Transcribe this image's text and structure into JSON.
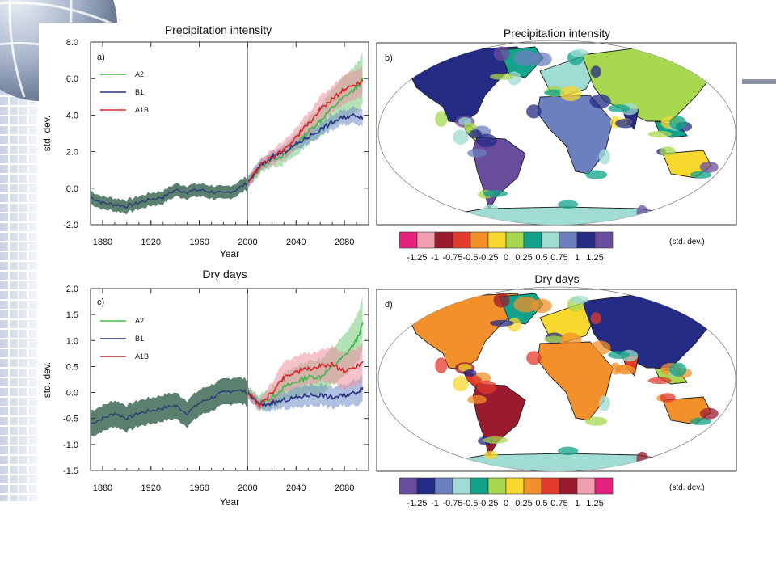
{
  "slide": {
    "background_colors": {
      "globe": "#8a9bb5",
      "grid": "#c9d3e3",
      "rule": "#8d95a4"
    }
  },
  "chart_data": [
    {
      "type": "line",
      "panel": "a)",
      "title": "Precipitation intensity",
      "xlabel": "Year",
      "ylabel": "std. dev.",
      "xlim": [
        1870,
        2100
      ],
      "ylim": [
        -2.0,
        8.0
      ],
      "xticks": [
        "1880",
        "1920",
        "1960",
        "2000",
        "2040",
        "2080"
      ],
      "yticks": [
        "-2.0",
        "0.0",
        "2.0",
        "4.0",
        "6.0",
        "8.0"
      ],
      "vline_x": 2000,
      "legend": "top-left",
      "grey_band_color": "#3f6a57",
      "series": [
        {
          "name": "A2",
          "color": "#3db84a",
          "band_color": "#79c97a",
          "x": [
            2000,
            2010,
            2020,
            2030,
            2040,
            2050,
            2060,
            2070,
            2080,
            2090,
            2095
          ],
          "values": [
            0.3,
            1.1,
            1.6,
            1.8,
            2.4,
            3.1,
            3.7,
            4.4,
            5.0,
            5.5,
            5.9
          ],
          "spread": [
            0.3,
            0.3,
            0.4,
            0.5,
            0.6,
            0.7,
            0.8,
            1.0,
            1.1,
            1.3,
            1.4
          ]
        },
        {
          "name": "B1",
          "color": "#28347f",
          "band_color": "#6f8cc7",
          "x": [
            2000,
            2010,
            2020,
            2030,
            2040,
            2050,
            2060,
            2070,
            2080,
            2090,
            2095
          ],
          "values": [
            0.3,
            1.2,
            1.7,
            2.0,
            2.4,
            2.8,
            3.2,
            3.6,
            3.9,
            4.0,
            3.9
          ],
          "spread": [
            0.3,
            0.3,
            0.3,
            0.3,
            0.3,
            0.35,
            0.35,
            0.4,
            0.4,
            0.45,
            0.45
          ]
        },
        {
          "name": "A1B",
          "color": "#d7262b",
          "band_color": "#ec8fa1",
          "x": [
            2000,
            2010,
            2020,
            2030,
            2040,
            2050,
            2060,
            2070,
            2080,
            2090,
            2095
          ],
          "values": [
            0.3,
            1.2,
            1.7,
            2.1,
            2.8,
            3.5,
            4.3,
            4.9,
            5.4,
            5.7,
            5.9
          ],
          "spread": [
            0.3,
            0.3,
            0.4,
            0.5,
            0.5,
            0.6,
            0.7,
            0.7,
            0.8,
            0.8,
            0.8
          ]
        }
      ],
      "historical": {
        "x": [
          1870,
          1880,
          1890,
          1900,
          1910,
          1920,
          1930,
          1940,
          1950,
          1960,
          1970,
          1980,
          1990,
          2000
        ],
        "values": [
          -0.5,
          -0.8,
          -0.9,
          -1.0,
          -0.8,
          -0.6,
          -0.5,
          -0.1,
          -0.2,
          -0.1,
          -0.2,
          -0.3,
          -0.1,
          0.3
        ],
        "spread": 0.35
      }
    },
    {
      "type": "heatmap",
      "panel": "b)",
      "title": "Precipitation intensity",
      "colorbar_unit": "(std. dev.)",
      "colorbar_labels": [
        "-1.25",
        "-1",
        "-0.75",
        "-0.5",
        "-0.25",
        "0",
        "0.25",
        "0.5",
        "0.75",
        "1",
        "1.25"
      ],
      "colorbar_colors": [
        "#e3217d",
        "#f29db0",
        "#9b1b2e",
        "#e23a2c",
        "#f2902b",
        "#f7d82c",
        "#a7d84f",
        "#12a38a",
        "#9fdcd3",
        "#6c7fbe",
        "#242b85",
        "#6a4c9e"
      ]
    },
    {
      "type": "line",
      "panel": "c)",
      "title": "Dry days",
      "xlabel": "Year",
      "ylabel": "std. dev.",
      "xlim": [
        1870,
        2100
      ],
      "ylim": [
        -1.5,
        2.0
      ],
      "xticks": [
        "1880",
        "1920",
        "1960",
        "2000",
        "2040",
        "2080"
      ],
      "yticks": [
        "-1.5",
        "-1.0",
        "-0.5",
        "0.0",
        "0.5",
        "1.0",
        "1.5",
        "2.0"
      ],
      "vline_x": 2000,
      "legend": "top-left",
      "grey_band_color": "#3f6a57",
      "series": [
        {
          "name": "A2",
          "color": "#3db84a",
          "band_color": "#79c97a",
          "x": [
            2000,
            2010,
            2020,
            2030,
            2040,
            2050,
            2060,
            2070,
            2080,
            2090,
            2095
          ],
          "values": [
            0.0,
            -0.2,
            -0.1,
            0.1,
            0.2,
            0.3,
            0.3,
            0.5,
            0.7,
            1.0,
            1.3
          ],
          "spread": [
            0.1,
            0.15,
            0.2,
            0.25,
            0.3,
            0.3,
            0.35,
            0.35,
            0.4,
            0.45,
            0.5
          ]
        },
        {
          "name": "B1",
          "color": "#28347f",
          "band_color": "#6f8cc7",
          "x": [
            2000,
            2010,
            2020,
            2030,
            2040,
            2050,
            2060,
            2070,
            2080,
            2090,
            2095
          ],
          "values": [
            0.0,
            -0.25,
            -0.2,
            -0.15,
            -0.1,
            -0.05,
            -0.05,
            -0.1,
            -0.05,
            0.0,
            0.1
          ],
          "spread": [
            0.1,
            0.1,
            0.15,
            0.15,
            0.2,
            0.2,
            0.2,
            0.2,
            0.2,
            0.25,
            0.25
          ]
        },
        {
          "name": "A1B",
          "color": "#d7262b",
          "band_color": "#ec8fa1",
          "x": [
            2000,
            2010,
            2020,
            2030,
            2040,
            2050,
            2060,
            2070,
            2080,
            2090,
            2095
          ],
          "values": [
            0.0,
            -0.25,
            0.0,
            0.3,
            0.4,
            0.45,
            0.5,
            0.55,
            0.4,
            0.5,
            0.6
          ],
          "spread": [
            0.1,
            0.1,
            0.2,
            0.3,
            0.3,
            0.3,
            0.3,
            0.35,
            0.35,
            0.35,
            0.35
          ]
        }
      ],
      "historical": {
        "x": [
          1870,
          1880,
          1890,
          1900,
          1910,
          1920,
          1930,
          1940,
          1950,
          1960,
          1970,
          1980,
          1990,
          2000
        ],
        "values": [
          -0.6,
          -0.5,
          -0.4,
          -0.5,
          -0.4,
          -0.35,
          -0.3,
          -0.25,
          -0.4,
          -0.2,
          -0.1,
          0.0,
          0.05,
          0.0
        ],
        "spread": 0.25
      }
    },
    {
      "type": "heatmap",
      "panel": "d)",
      "title": "Dry days",
      "colorbar_unit": "(std. dev.)",
      "colorbar_labels": [
        "-1.25",
        "-1",
        "-0.75",
        "-0.5",
        "-0.25",
        "0",
        "0.25",
        "0.5",
        "0.75",
        "1",
        "1.25"
      ],
      "colorbar_colors": [
        "#6a4c9e",
        "#242b85",
        "#6c7fbe",
        "#9fdcd3",
        "#12a38a",
        "#a7d84f",
        "#f7d82c",
        "#f2902b",
        "#e23a2c",
        "#9b1b2e",
        "#f29db0",
        "#e3217d"
      ]
    }
  ]
}
